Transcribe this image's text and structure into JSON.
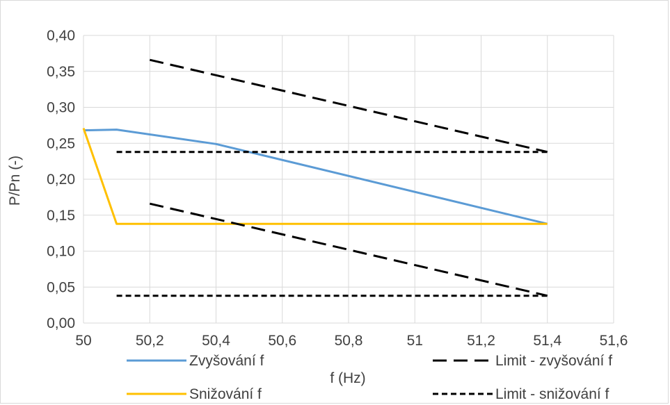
{
  "chart_data": {
    "type": "line",
    "title": "",
    "xlabel": "f (Hz)",
    "ylabel": "P/Pn (-)",
    "xlim": [
      50,
      51.6
    ],
    "ylim": [
      0,
      0.4
    ],
    "x_ticks": [
      "50",
      "50,2",
      "50,4",
      "50,6",
      "50,8",
      "51",
      "51,2",
      "51,4",
      "51,6"
    ],
    "y_ticks": [
      "0,00",
      "0,05",
      "0,10",
      "0,15",
      "0,20",
      "0,25",
      "0,30",
      "0,35",
      "0,40"
    ],
    "grid": true,
    "legend_position": "bottom",
    "series": [
      {
        "name": "Zvyšování f",
        "color": "#5b9bd5",
        "dash": "solid",
        "segments": [
          {
            "x": [
              50,
              50.1,
              50.4,
              51.4
            ],
            "y": [
              0.268,
              0.269,
              0.249,
              0.138
            ]
          }
        ]
      },
      {
        "name": "Snižování f",
        "color": "#ffc000",
        "dash": "solid",
        "segments": [
          {
            "x": [
              50,
              50.1,
              51.4
            ],
            "y": [
              0.271,
              0.138,
              0.138
            ]
          }
        ]
      },
      {
        "name": "Limit - zvyšování f",
        "color": "#000000",
        "dash": "long",
        "segments": [
          {
            "x": [
              50.2,
              51.4
            ],
            "y": [
              0.366,
              0.238
            ]
          },
          {
            "x": [
              50.2,
              51.4
            ],
            "y": [
              0.166,
              0.038
            ]
          }
        ]
      },
      {
        "name": "Limit - snižování f",
        "color": "#000000",
        "dash": "short",
        "segments": [
          {
            "x": [
              50.1,
              51.4
            ],
            "y": [
              0.238,
              0.238
            ]
          },
          {
            "x": [
              50.1,
              51.4
            ],
            "y": [
              0.038,
              0.038
            ]
          }
        ]
      }
    ]
  }
}
